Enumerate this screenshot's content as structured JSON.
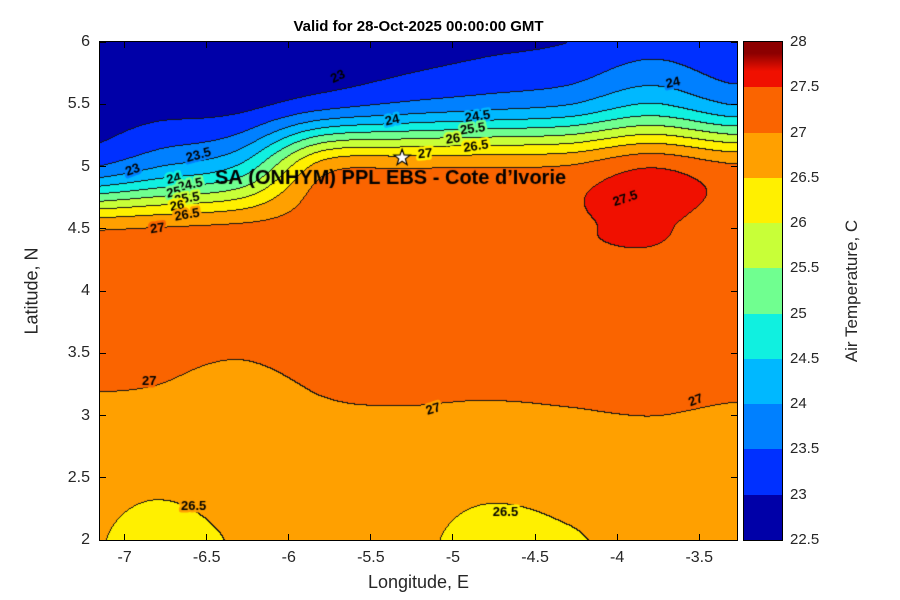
{
  "figure": {
    "title": "Valid for 28-Oct-2025 00:00:00 GMT",
    "background_color": "#FFFFFF"
  },
  "axes": {
    "xlabel": "Longitude, E",
    "ylabel": "Latitude, N",
    "xlim": [
      -7.15,
      -3.27
    ],
    "ylim": [
      2,
      6
    ],
    "xticks": [
      {
        "value": -7,
        "label": "-7"
      },
      {
        "value": -6.5,
        "label": "-6.5"
      },
      {
        "value": -6,
        "label": "-6"
      },
      {
        "value": -5.5,
        "label": "-5.5"
      },
      {
        "value": -5,
        "label": "-5"
      },
      {
        "value": -4.5,
        "label": "-4.5"
      },
      {
        "value": -4,
        "label": "-4"
      },
      {
        "value": -3.5,
        "label": "-3.5"
      }
    ],
    "yticks": [
      {
        "value": 2,
        "label": "2"
      },
      {
        "value": 2.5,
        "label": "2.5"
      },
      {
        "value": 3,
        "label": "3"
      },
      {
        "value": 3.5,
        "label": "3.5"
      },
      {
        "value": 4,
        "label": "4"
      },
      {
        "value": 4.5,
        "label": "4.5"
      },
      {
        "value": 5,
        "label": "5"
      },
      {
        "value": 5.5,
        "label": "5.5"
      },
      {
        "value": 6,
        "label": "6"
      }
    ]
  },
  "colorbar": {
    "label": "Air Temperature, C",
    "min": 22.5,
    "max": 28,
    "ticks": [
      {
        "value": 28,
        "label": "28"
      },
      {
        "value": 27.5,
        "label": "27.5"
      },
      {
        "value": 27,
        "label": "27"
      },
      {
        "value": 26.5,
        "label": "26.5"
      },
      {
        "value": 26,
        "label": "26"
      },
      {
        "value": 25.5,
        "label": "25.5"
      },
      {
        "value": 25,
        "label": "25"
      },
      {
        "value": 24.5,
        "label": "24.5"
      },
      {
        "value": 24,
        "label": "24"
      },
      {
        "value": 23.5,
        "label": "23.5"
      },
      {
        "value": 23,
        "label": "23"
      },
      {
        "value": 22.5,
        "label": "22.5"
      }
    ],
    "band_colors": [
      "#0000A8",
      "#0030FF",
      "#0080FF",
      "#00B8FF",
      "#10F0E0",
      "#70FF90",
      "#C8FF38",
      "#FFF000",
      "#FFA000",
      "#FA6400",
      "#F01000"
    ],
    "cap_color": "#8C0000"
  },
  "chart_data": {
    "type": "heatmap",
    "variable": "Air Temperature",
    "units": "C",
    "contour_interval": 0.5,
    "contour_levels": [
      23,
      23.5,
      24,
      24.5,
      25,
      25.5,
      26,
      26.5,
      27,
      27.5
    ],
    "lons": [
      -7.3,
      -6.8,
      -6.3,
      -5.8,
      -5.3,
      -4.8,
      -4.3,
      -3.8,
      -3.3
    ],
    "lats": [
      2,
      2.5,
      3,
      3.5,
      4,
      4.5,
      5,
      5.5,
      6
    ],
    "temperature_grid_south_to_north": [
      [
        26.62,
        26.3,
        26.55,
        26.72,
        26.65,
        26.32,
        26.45,
        26.65,
        26.62
      ],
      [
        26.75,
        26.62,
        26.75,
        26.85,
        26.8,
        26.65,
        26.72,
        26.82,
        26.8
      ],
      [
        26.93,
        26.9,
        26.8,
        26.95,
        26.97,
        26.94,
        26.97,
        27.0,
        26.96
      ],
      [
        27.1,
        27.08,
        27.02,
        27.12,
        27.15,
        27.15,
        27.15,
        27.2,
        27.15
      ],
      [
        27.15,
        27.2,
        27.2,
        27.25,
        27.28,
        27.3,
        27.3,
        27.3,
        27.28
      ],
      [
        26.95,
        27.05,
        27.15,
        27.25,
        27.3,
        27.35,
        27.45,
        27.55,
        27.3
      ],
      [
        23.4,
        24.0,
        24.6,
        26.75,
        26.95,
        26.98,
        27.05,
        27.48,
        27.1
      ],
      [
        22.7,
        22.8,
        22.85,
        23.3,
        23.6,
        23.8,
        24.0,
        24.55,
        24.0
      ],
      [
        22.6,
        22.6,
        22.62,
        22.7,
        22.8,
        22.9,
        23.0,
        23.3,
        23.1
      ]
    ],
    "contour_labels": [
      {
        "text": "23",
        "lon": -6.95,
        "lat": 4.97,
        "rot": -20
      },
      {
        "text": "23.5",
        "lon": -6.55,
        "lat": 5.09,
        "rot": -15
      },
      {
        "text": "24",
        "lon": -6.7,
        "lat": 4.9,
        "rot": -12
      },
      {
        "text": "24.5",
        "lon": -6.6,
        "lat": 4.85,
        "rot": -12
      },
      {
        "text": "25",
        "lon": -6.7,
        "lat": 4.79,
        "rot": -12
      },
      {
        "text": "25.5",
        "lon": -6.62,
        "lat": 4.74,
        "rot": -10
      },
      {
        "text": "26",
        "lon": -6.68,
        "lat": 4.68,
        "rot": -10
      },
      {
        "text": "26.5",
        "lon": -6.62,
        "lat": 4.61,
        "rot": -10
      },
      {
        "text": "27",
        "lon": -6.8,
        "lat": 4.5,
        "rot": -8
      },
      {
        "text": "23",
        "lon": -5.7,
        "lat": 5.72,
        "rot": -25
      },
      {
        "text": "24",
        "lon": -5.37,
        "lat": 5.37,
        "rot": -12
      },
      {
        "text": "24.5",
        "lon": -4.85,
        "lat": 5.4,
        "rot": -8
      },
      {
        "text": "25.5",
        "lon": -4.88,
        "lat": 5.3,
        "rot": -8
      },
      {
        "text": "26",
        "lon": -5.0,
        "lat": 5.22,
        "rot": -8
      },
      {
        "text": "26.5",
        "lon": -4.86,
        "lat": 5.16,
        "rot": -8
      },
      {
        "text": "27",
        "lon": -5.17,
        "lat": 5.1,
        "rot": -5
      },
      {
        "text": "24",
        "lon": -3.66,
        "lat": 5.67,
        "rot": -12
      },
      {
        "text": "27.5",
        "lon": -3.95,
        "lat": 4.74,
        "rot": -18
      },
      {
        "text": "27",
        "lon": -6.85,
        "lat": 3.27,
        "rot": 0
      },
      {
        "text": "27",
        "lon": -5.12,
        "lat": 3.05,
        "rot": -18
      },
      {
        "text": "27",
        "lon": -3.52,
        "lat": 3.12,
        "rot": -22
      },
      {
        "text": "26.5",
        "lon": -6.58,
        "lat": 2.27,
        "rot": 0
      },
      {
        "text": "26.5",
        "lon": -4.68,
        "lat": 2.22,
        "rot": 0
      }
    ]
  },
  "overlay": {
    "station_label": "SA (ONHYM) PPL EBS - Cote d’Ivorie",
    "label_anchor": {
      "lon": -6.45,
      "lat": 4.9
    },
    "star_marker": {
      "lon": -5.31,
      "lat": 5.07
    }
  }
}
